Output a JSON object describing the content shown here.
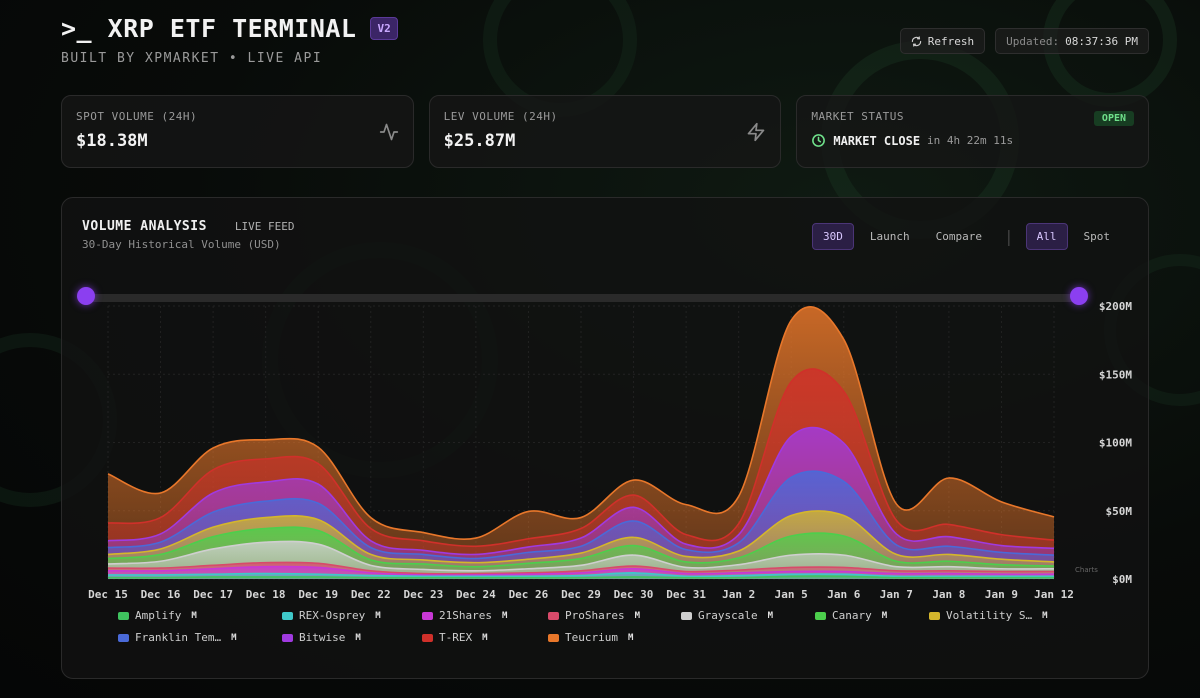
{
  "header": {
    "title": ">_ XRP ETF TERMINAL",
    "version_badge": "V2",
    "subtitle": "BUILT BY XPMARKET • LIVE API"
  },
  "actions": {
    "refresh_label": "Refresh",
    "updated_prefix": "Updated:",
    "updated_time": "08:37:36 PM"
  },
  "cards": {
    "spot": {
      "label": "SPOT VOLUME (24H)",
      "value": "$18.38M",
      "icon": "activity-icon"
    },
    "lev": {
      "label": "LEV VOLUME (24H)",
      "value": "$25.87M",
      "icon": "zap-icon"
    },
    "market": {
      "label": "MARKET STATUS",
      "status": "OPEN",
      "event": "MARKET CLOSE",
      "countdown": "in 4h 22m 11s",
      "icon": "clock-icon"
    }
  },
  "panel": {
    "title": "VOLUME ANALYSIS",
    "live": "LIVE FEED",
    "subtitle": "30-Day Historical Volume (USD)",
    "tabs": [
      "30D",
      "Launch",
      "Compare"
    ],
    "filters": [
      "All",
      "Spot"
    ],
    "active_tab": "30D",
    "active_filter": "All",
    "separator": "|",
    "watermark": "Charts"
  },
  "chart_data": {
    "type": "area",
    "stacked": true,
    "x": [
      "Dec 15",
      "Dec 16",
      "Dec 17",
      "Dec 18",
      "Dec 19",
      "Dec 22",
      "Dec 23",
      "Dec 24",
      "Dec 26",
      "Dec 29",
      "Dec 30",
      "Dec 31",
      "Jan 2",
      "Jan 5",
      "Jan 6",
      "Jan 7",
      "Jan 8",
      "Jan 9",
      "Jan 12"
    ],
    "ylim": [
      0,
      200
    ],
    "yticks": [
      "$0M",
      "$50M",
      "$100M",
      "$150M",
      "$200M"
    ],
    "ytick_values": [
      0,
      50,
      100,
      150,
      200
    ],
    "series": [
      {
        "name": "Amplify",
        "color": "#3fc35f",
        "values": [
          1,
          1,
          1.5,
          1.5,
          1.5,
          1,
          1,
          1,
          1,
          1,
          1.5,
          1,
          1,
          2,
          2,
          1,
          1,
          1,
          1
        ]
      },
      {
        "name": "REX-Osprey",
        "color": "#3fc9c9",
        "values": [
          2,
          2,
          2,
          2.5,
          2,
          1.5,
          1,
          1,
          1,
          1.5,
          3,
          1,
          1.5,
          1.5,
          1.5,
          1,
          1,
          1,
          1
        ]
      },
      {
        "name": "21Shares",
        "color": "#c838d6",
        "values": [
          3,
          3,
          4,
          5,
          5,
          2,
          1,
          1,
          1.5,
          2,
          3,
          2,
          2,
          2,
          2,
          2,
          2,
          1.5,
          1.5
        ]
      },
      {
        "name": "ProShares",
        "color": "#d84a6a",
        "values": [
          2,
          2,
          2.5,
          3,
          3,
          1.5,
          1,
          1,
          1,
          1.5,
          2,
          1.5,
          2,
          3,
          3,
          2,
          2,
          2,
          2
        ]
      },
      {
        "name": "Grayscale",
        "color": "#cfcfcf",
        "values": [
          3,
          5,
          12,
          15,
          14,
          4,
          3,
          2,
          3,
          4,
          8,
          3,
          4,
          9,
          9,
          3,
          3,
          2,
          2
        ]
      },
      {
        "name": "Canary",
        "color": "#4ccf4c",
        "values": [
          4,
          5,
          9,
          10,
          10,
          4,
          4,
          3,
          4,
          5,
          7,
          4,
          5,
          14,
          14,
          4,
          4,
          3,
          2
        ]
      },
      {
        "name": "Volatility S…",
        "color": "#d4b62c",
        "values": [
          3,
          4,
          7,
          8,
          8,
          4,
          3,
          3,
          3,
          4,
          6,
          4,
          5,
          15,
          15,
          5,
          5,
          4,
          3
        ]
      },
      {
        "name": "Franklin Tem…",
        "color": "#4a6ad8",
        "values": [
          5,
          5,
          11,
          12,
          12,
          5,
          4,
          3,
          5,
          5,
          12,
          5,
          6,
          28,
          25,
          7,
          6,
          5,
          5
        ]
      },
      {
        "name": "Bitwise",
        "color": "#a03ae0",
        "values": [
          5,
          6,
          14,
          14,
          14,
          5,
          3,
          3,
          4,
          6,
          10,
          4,
          6,
          30,
          28,
          8,
          7,
          5,
          5
        ]
      },
      {
        "name": "T-REX",
        "color": "#d0302a",
        "values": [
          13,
          12,
          17,
          17,
          15,
          9,
          7,
          6,
          6,
          7,
          9,
          7,
          8,
          40,
          38,
          10,
          9,
          8,
          6
        ]
      },
      {
        "name": "Teucrium",
        "color": "#e8772a",
        "values": [
          36,
          18,
          16,
          14,
          12,
          8,
          6,
          6,
          20,
          8,
          11,
          22,
          20,
          45,
          38,
          12,
          34,
          24,
          17
        ]
      }
    ]
  },
  "legend": [
    {
      "label": "Amplify",
      "unit": "M",
      "color": "#3fc35f"
    },
    {
      "label": "REX-Osprey",
      "unit": "M",
      "color": "#3fc9c9"
    },
    {
      "label": "21Shares",
      "unit": "M",
      "color": "#c838d6"
    },
    {
      "label": "ProShares",
      "unit": "M",
      "color": "#d84a6a"
    },
    {
      "label": "Grayscale",
      "unit": "M",
      "color": "#cfcfcf"
    },
    {
      "label": "Canary",
      "unit": "M",
      "color": "#4ccf4c"
    },
    {
      "label": "Volatility S…",
      "unit": "M",
      "color": "#d4b62c"
    },
    {
      "label": "Franklin Tem…",
      "unit": "M",
      "color": "#4a6ad8"
    },
    {
      "label": "Bitwise",
      "unit": "M",
      "color": "#a03ae0"
    },
    {
      "label": "T-REX",
      "unit": "M",
      "color": "#d0302a"
    },
    {
      "label": "Teucrium",
      "unit": "M",
      "color": "#e8772a"
    }
  ]
}
